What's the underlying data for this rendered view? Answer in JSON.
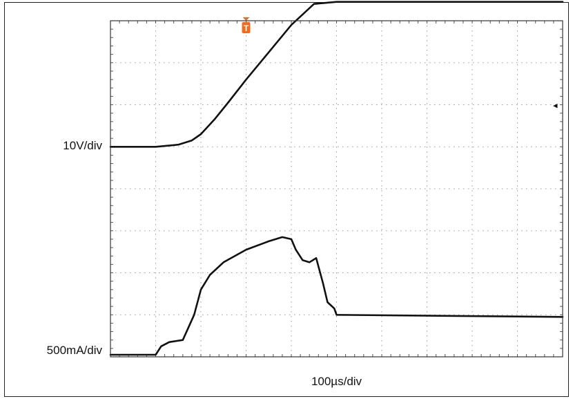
{
  "chart_data": {
    "type": "line",
    "title": "",
    "xlabel": "100µs/div",
    "x_divisions": 10,
    "y_divisions": 8,
    "grid": true,
    "channel_labels": [
      "10V/div",
      "500mA/div"
    ],
    "series": [
      {
        "name": "10V/div",
        "unit": "div",
        "x": [
          0,
          1.0,
          1.5,
          1.8,
          2.0,
          2.3,
          2.6,
          3.0,
          3.5,
          4.0,
          4.5,
          5.0,
          10.0
        ],
        "values": [
          5.0,
          5.0,
          5.05,
          5.15,
          5.3,
          5.65,
          6.05,
          6.6,
          7.25,
          7.9,
          8.4,
          8.45,
          8.45
        ]
      },
      {
        "name": "500mA/div",
        "unit": "div",
        "x": [
          0,
          1.0,
          1.12,
          1.3,
          1.6,
          1.85,
          2.0,
          2.2,
          2.5,
          3.0,
          3.5,
          3.8,
          4.0,
          4.1,
          4.25,
          4.4,
          4.55,
          4.7,
          4.8,
          4.95,
          5.0,
          10.0
        ],
        "values": [
          0.05,
          0.05,
          0.25,
          0.35,
          0.4,
          1.0,
          1.6,
          1.95,
          2.25,
          2.55,
          2.75,
          2.85,
          2.8,
          2.55,
          2.3,
          2.25,
          2.35,
          1.75,
          1.3,
          1.15,
          1.0,
          0.95
        ]
      }
    ],
    "markers": [
      {
        "label": "T",
        "x": 3.0,
        "color": "#f26b1d"
      }
    ],
    "ref_marker": {
      "y": 6.0,
      "glyph": "◂"
    }
  }
}
